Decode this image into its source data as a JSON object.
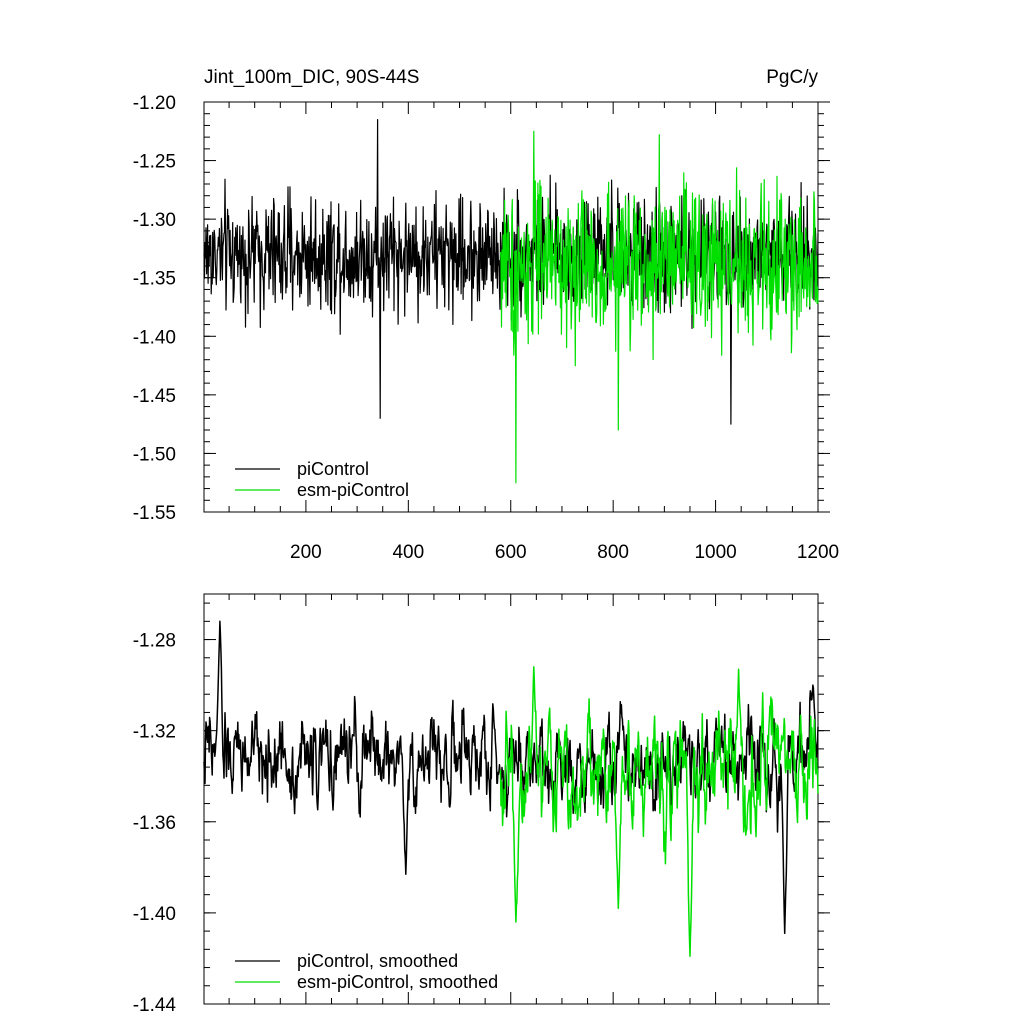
{
  "colors": {
    "piControl": "#000000",
    "esm": "#00e000"
  },
  "chart_data": [
    {
      "type": "line",
      "title": "Jint_100m_DIC, 90S-44S",
      "units": "PgC/y",
      "xlim": [
        1,
        1200
      ],
      "ylim": [
        -1.55,
        -1.2
      ],
      "xticks": [
        200,
        400,
        600,
        800,
        1000,
        1200
      ],
      "yticks": [
        -1.2,
        -1.25,
        -1.3,
        -1.35,
        -1.4,
        -1.45,
        -1.5,
        -1.55
      ],
      "ytick_labels": [
        "-1.20",
        "-1.25",
        "-1.30",
        "-1.35",
        "-1.40",
        "-1.45",
        "-1.50",
        "-1.55"
      ],
      "legend_position": "bottom-left",
      "series": [
        {
          "name": "piControl",
          "color": "#000000",
          "x_start": 1,
          "x_step": 1,
          "mean": -1.33,
          "amplitude": 0.045,
          "extremes": [
            [
              340,
              -1.215
            ],
            [
              345,
              -1.47
            ],
            [
              1030,
              -1.475
            ]
          ]
        },
        {
          "name": "esm-piControl",
          "color": "#00e000",
          "x_start": 580,
          "x_step": 1,
          "mean": -1.34,
          "amplitude": 0.06,
          "extremes": [
            [
              610,
              -1.525
            ],
            [
              645,
              -1.225
            ],
            [
              810,
              -1.48
            ],
            [
              890,
              -1.228
            ]
          ]
        }
      ]
    },
    {
      "type": "line",
      "title": "",
      "xlim": [
        1,
        1200
      ],
      "ylim": [
        -1.44,
        -1.26
      ],
      "xticks": [
        200,
        400,
        600,
        800,
        1000,
        1200
      ],
      "yticks": [
        -1.28,
        -1.32,
        -1.36,
        -1.4,
        -1.44
      ],
      "ytick_labels": [
        "-1.28",
        "-1.32",
        "-1.36",
        "-1.40",
        "-1.44"
      ],
      "legend_position": "bottom-left",
      "series": [
        {
          "name": "piControl, smoothed",
          "color": "#000000",
          "x_start": 1,
          "x_step": 1,
          "mean": -1.332,
          "amplitude": 0.014,
          "extremes": [
            [
              32,
              -1.272
            ],
            [
              395,
              -1.383
            ],
            [
              1135,
              -1.409
            ],
            [
              1190,
              -1.3
            ]
          ]
        },
        {
          "name": "esm-piControl, smoothed",
          "color": "#00e000",
          "x_start": 580,
          "x_step": 1,
          "mean": -1.338,
          "amplitude": 0.018,
          "extremes": [
            [
              610,
              -1.404
            ],
            [
              645,
              -1.292
            ],
            [
              810,
              -1.398
            ],
            [
              950,
              -1.419
            ],
            [
              1045,
              -1.293
            ]
          ]
        }
      ]
    }
  ]
}
